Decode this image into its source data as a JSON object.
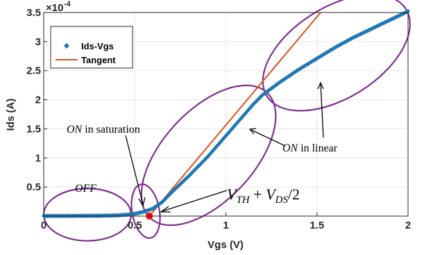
{
  "chart_data": {
    "type": "scatter",
    "xlabel": "Vgs (V)",
    "ylabel": "Ids (A)",
    "xlim": [
      0,
      2
    ],
    "ylim": [
      0,
      0.00035
    ],
    "x_ticks": [
      "0",
      "0.5",
      "1",
      "1.5",
      "2"
    ],
    "y_ticks": [
      "0.5",
      "1",
      "1.5",
      "2",
      "2.5",
      "3",
      "3.5"
    ],
    "y_exponent_label": "×10",
    "y_exponent_power": "-4",
    "grid": true,
    "legend_position": "top-left",
    "colors": {
      "data": "#1f77b4",
      "tangent": "#d95319",
      "ellipse": "#7e2f8e",
      "vth_point": "#ff0000",
      "axis": "#262626",
      "grid": "#e6e6e6"
    },
    "series": [
      {
        "name": "Ids-Vgs",
        "marker": "diamond",
        "x": [
          0,
          0.1,
          0.2,
          0.3,
          0.4,
          0.45,
          0.5,
          0.55,
          0.6,
          0.65,
          0.7,
          0.75,
          0.8,
          0.85,
          0.9,
          0.95,
          1.0,
          1.05,
          1.1,
          1.15,
          1.2,
          1.3,
          1.4,
          1.5,
          1.6,
          1.7,
          1.8,
          1.9,
          2.0
        ],
        "y": [
          2e-07,
          3e-07,
          4e-07,
          6e-07,
          1.2e-06,
          2.2e-06,
          4e-06,
          7.5e-06,
          1.3e-05,
          2.4e-05,
          4e-05,
          5.5e-05,
          7e-05,
          8.6e-05,
          0.000102,
          0.00012,
          0.000138,
          0.000156,
          0.000174,
          0.000192,
          0.000208,
          0.000231,
          0.000252,
          0.000271,
          0.00029,
          0.000307,
          0.000322,
          0.000337,
          0.000352
        ]
      },
      {
        "name": "Tangent",
        "type": "line",
        "x": [
          0.58,
          1.52
        ],
        "y": [
          0,
          0.00035
        ]
      }
    ],
    "vth_point": {
      "x": 0.58,
      "y": 0
    },
    "annotations": {
      "off": "OFF",
      "on_sat_italic": "ON",
      "on_sat_rest": " in saturation",
      "on_lin_italic": "ON",
      "on_lin_rest": " in linear",
      "vth": {
        "v1": "V",
        "s1": "TH",
        "plus": " + ",
        "v2": "V",
        "s2": "DS",
        "div": "/2"
      }
    }
  }
}
